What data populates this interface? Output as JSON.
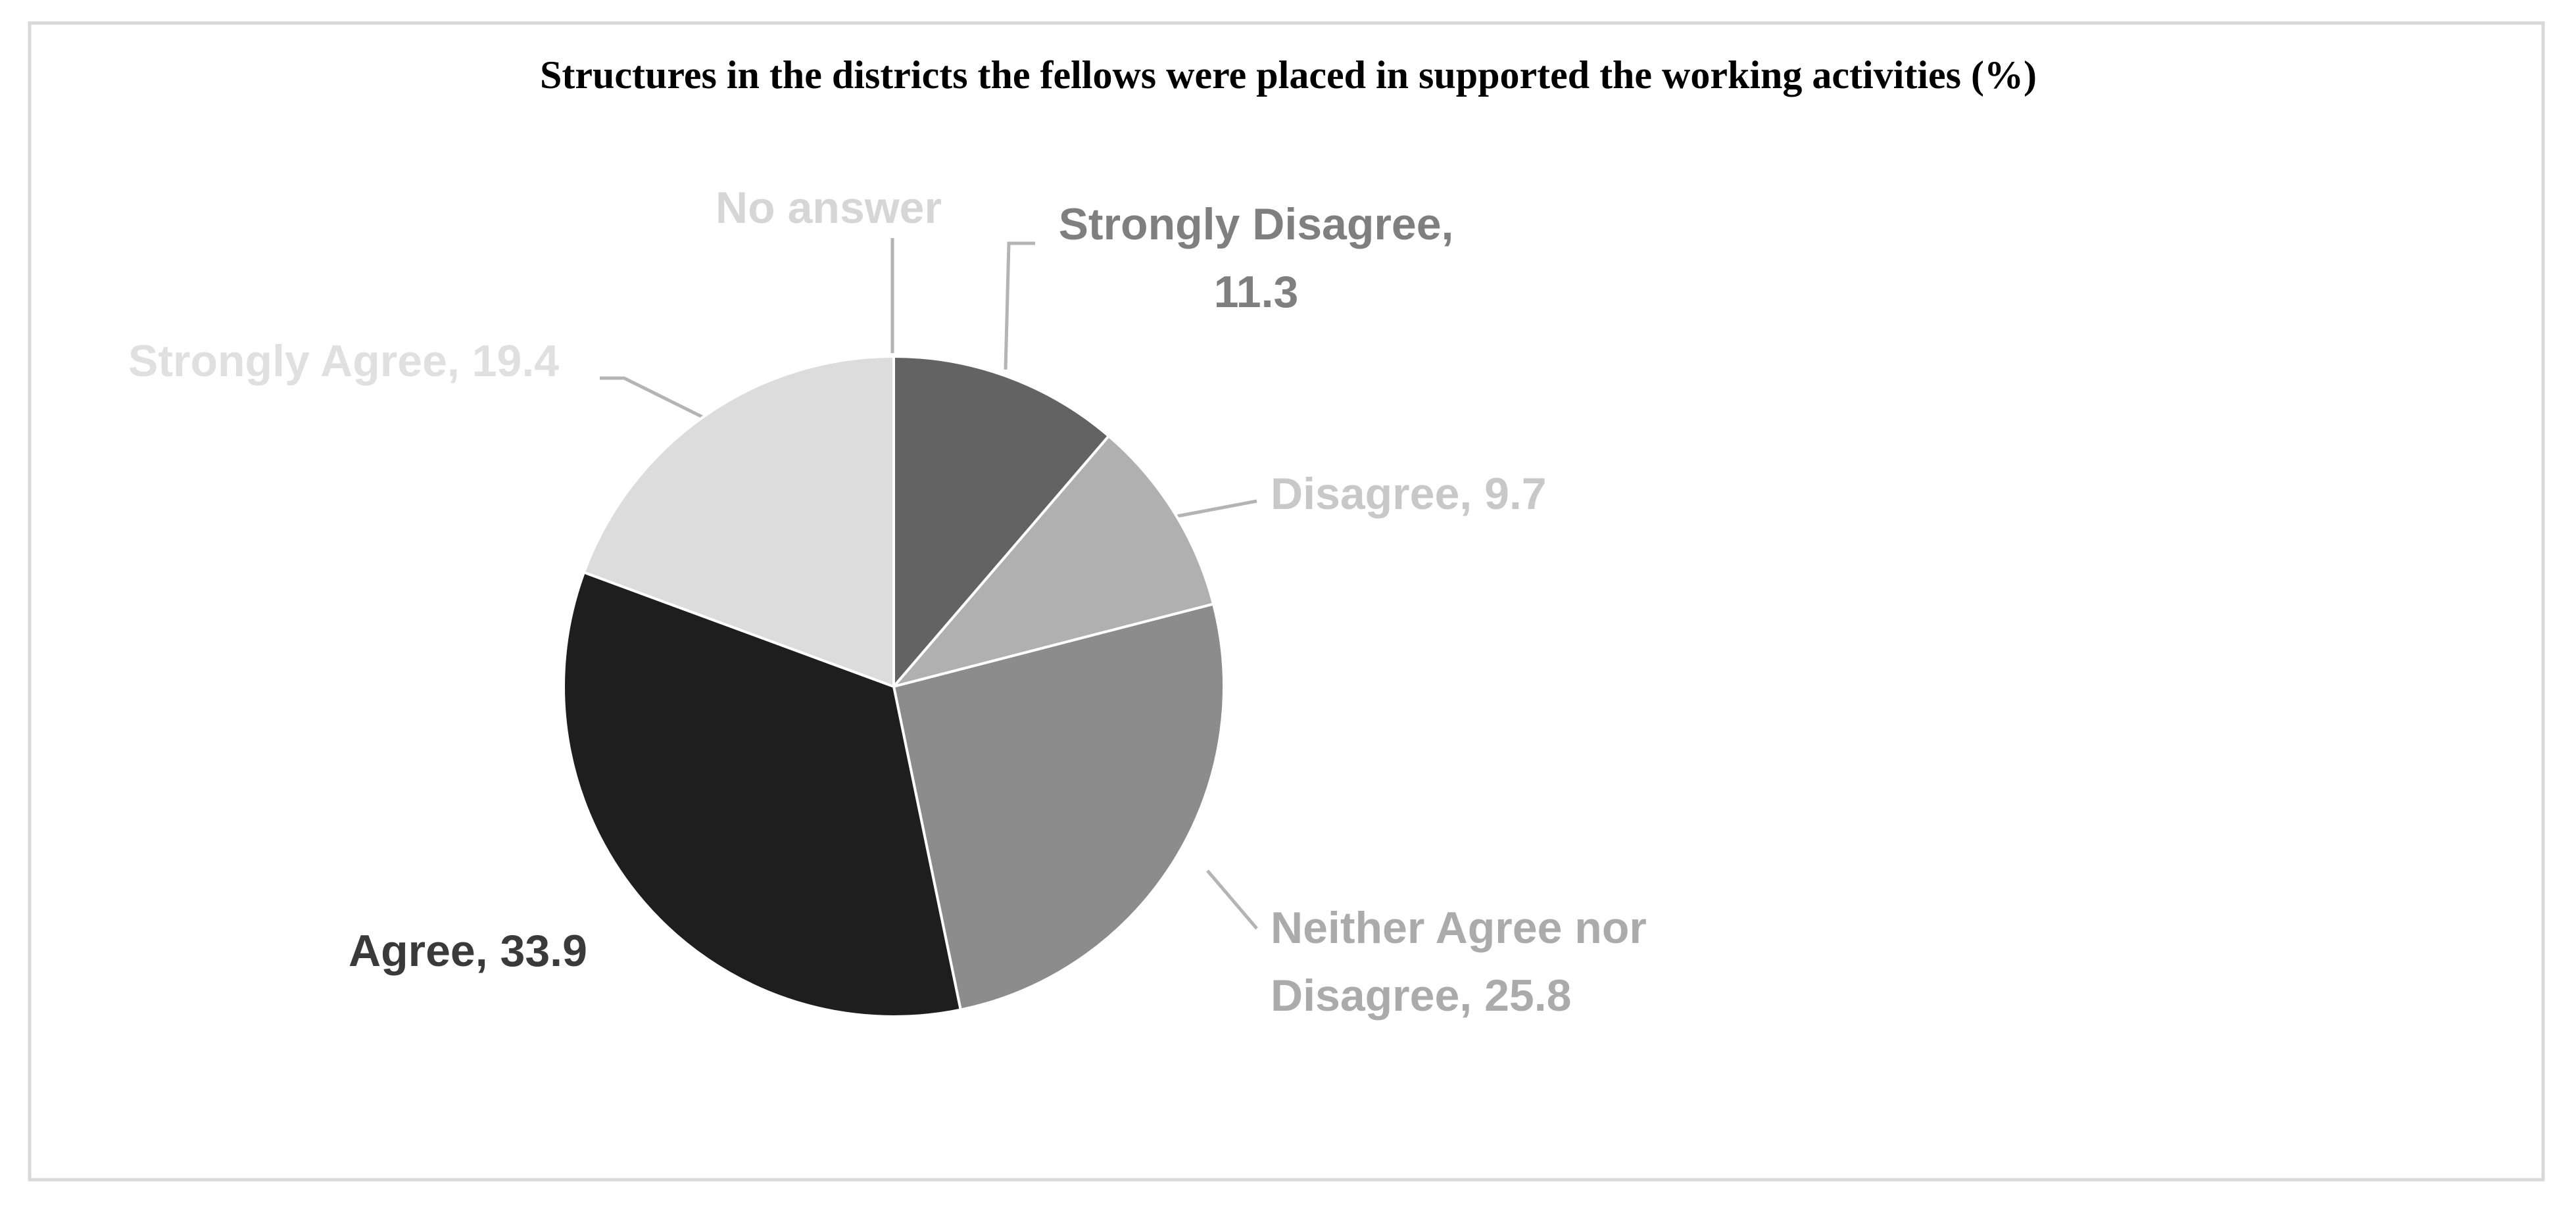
{
  "chart_data": {
    "type": "pie",
    "title": "Structures in the districts the fellows were placed in supported the working activities (%)",
    "categories": [
      "Strongly Disagree",
      "Disagree",
      "Neither Agree nor Disagree",
      "Agree",
      "Strongly Agree",
      "No answer"
    ],
    "values": [
      11.3,
      9.7,
      25.8,
      33.9,
      19.4,
      null
    ],
    "value_labels": [
      ", 11.3",
      ", 9.7",
      ", 25.8",
      ", 33.9",
      ", 19.4",
      null
    ],
    "colors": [
      "#636363",
      "#b0b0b0",
      "#8c8c8c",
      "#1e1e1e",
      "#dcdcdc",
      "#f0f0f0"
    ],
    "label_colors": [
      "#7f7f7f",
      "#c8c8c8",
      "#ababab",
      "#3a3a3a",
      "#e0e0e0",
      "#d6d6d6"
    ]
  }
}
